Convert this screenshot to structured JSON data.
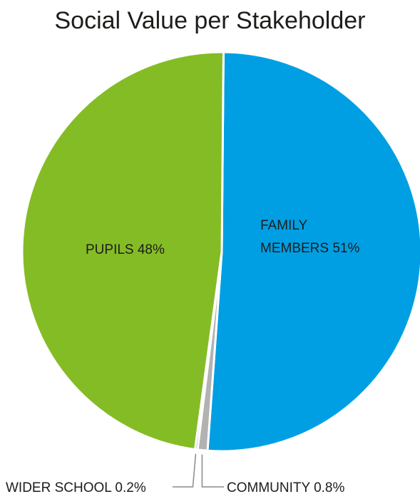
{
  "chart_data": {
    "type": "pie",
    "title": "Social Value per Stakeholder",
    "slices": [
      {
        "name": "FAMILY MEMBERS",
        "value": 51,
        "label_lines": [
          "FAMILY",
          "MEMBERS 51%"
        ],
        "color": "#009fe3"
      },
      {
        "name": "COMMUNITY",
        "value": 0.8,
        "label_lines": [
          "COMMUNITY 0.8%"
        ],
        "color": "#b2b2b2"
      },
      {
        "name": "WIDER SCHOOL",
        "value": 0.2,
        "label_lines": [
          "WIDER SCHOOL 0.2%"
        ],
        "color": "#7b7b7b"
      },
      {
        "name": "PUPILS",
        "value": 48,
        "label_lines": [
          "PUPILS 48%"
        ],
        "color": "#84bc26"
      }
    ]
  }
}
